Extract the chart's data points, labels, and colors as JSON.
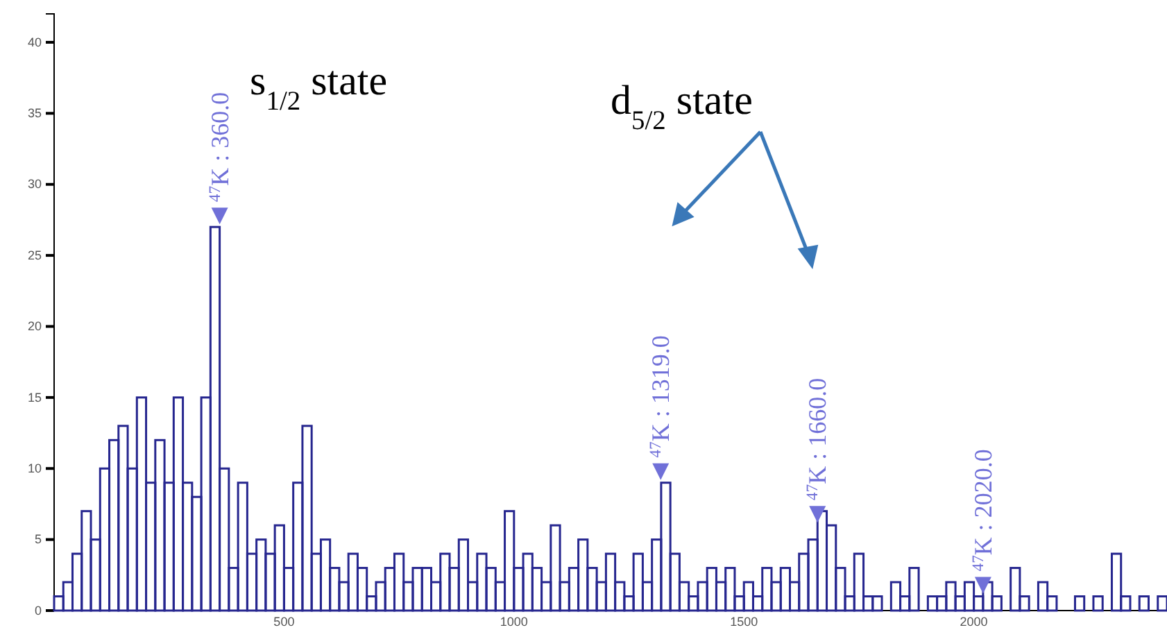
{
  "chart_data": {
    "type": "histogram",
    "bins": [
      0,
      20,
      40,
      60,
      80,
      100,
      120,
      140,
      160,
      180,
      200,
      220,
      240,
      260,
      280,
      300,
      320,
      340,
      360,
      380,
      400,
      420,
      440,
      460,
      480,
      500,
      520,
      540,
      560,
      580,
      600,
      620,
      640,
      660,
      680,
      700,
      720,
      740,
      760,
      780,
      800,
      820,
      840,
      860,
      880,
      900,
      920,
      940,
      960,
      980,
      1000,
      1020,
      1040,
      1060,
      1080,
      1100,
      1120,
      1140,
      1160,
      1180,
      1200,
      1220,
      1240,
      1260,
      1280,
      1300,
      1320,
      1340,
      1360,
      1380,
      1400,
      1420,
      1440,
      1460,
      1480,
      1500,
      1520,
      1540,
      1560,
      1580,
      1600,
      1620,
      1640,
      1660,
      1680,
      1700,
      1720,
      1740,
      1760,
      1780,
      1800,
      1820,
      1840,
      1860,
      1880,
      1900,
      1920,
      1940,
      1960,
      1980,
      2000,
      2020,
      2040,
      2060,
      2080,
      2100,
      2120,
      2140,
      2160,
      2180,
      2200,
      2220,
      2240,
      2260,
      2280,
      2300,
      2320,
      2340,
      2360,
      2380,
      2400,
      2420
    ],
    "values": [
      1,
      2,
      4,
      7,
      5,
      10,
      12,
      13,
      10,
      15,
      9,
      12,
      9,
      15,
      9,
      8,
      15,
      27,
      10,
      3,
      9,
      4,
      5,
      4,
      6,
      3,
      9,
      13,
      4,
      5,
      3,
      2,
      4,
      3,
      1,
      2,
      3,
      4,
      2,
      3,
      3,
      2,
      4,
      3,
      5,
      2,
      4,
      3,
      2,
      7,
      3,
      4,
      3,
      2,
      6,
      2,
      3,
      5,
      3,
      2,
      4,
      2,
      1,
      4,
      2,
      5,
      9,
      4,
      2,
      1,
      2,
      3,
      2,
      3,
      1,
      2,
      1,
      3,
      2,
      3,
      2,
      4,
      5,
      7,
      6,
      3,
      1,
      4,
      1,
      1,
      0,
      2,
      1,
      3,
      0,
      1,
      1,
      2,
      1,
      2,
      1,
      2,
      1,
      0,
      3,
      1,
      0,
      2,
      1,
      0,
      0,
      1,
      0,
      1,
      0,
      4,
      1,
      0,
      1,
      0,
      1
    ],
    "color": "#26268f",
    "xlim": [
      0,
      2420
    ],
    "xticks": [
      500,
      1000,
      1500,
      2000
    ],
    "ylim": [
      0,
      42
    ],
    "yticks": [
      0,
      5,
      10,
      15,
      20,
      25,
      30,
      35,
      40
    ],
    "annotations": [
      {
        "text": "$^{47}$K : 360.0",
        "x": 360,
        "y": 27
      },
      {
        "text": "$^{47}$K : 1319.0",
        "x": 1319,
        "y": 9
      },
      {
        "text": "$^{47}$K : 1660.0",
        "x": 1660,
        "y": 6
      },
      {
        "text": "$^{47}$K : 2020.0",
        "x": 2020,
        "y": 1
      },
      "s$_{1/2}$ state",
      "d$_{5/2}$ state"
    ]
  }
}
